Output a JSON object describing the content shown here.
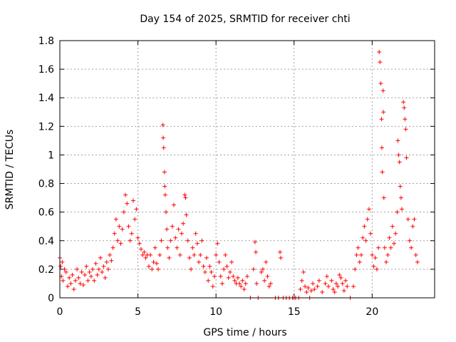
{
  "chart_data": {
    "type": "scatter",
    "title": "Day 154 of 2025, SRMTID for receiver chti",
    "xlabel": "GPS time / hours",
    "ylabel": "SRMTID / TECUs",
    "xlim": [
      0,
      24
    ],
    "ylim": [
      0,
      1.8
    ],
    "grid": true,
    "marker": "+",
    "color": "#ff0000",
    "x_ticks": [
      {
        "value": 0,
        "label": "0"
      },
      {
        "value": 5,
        "label": "5"
      },
      {
        "value": 10,
        "label": "10"
      },
      {
        "value": 15,
        "label": "15"
      },
      {
        "value": 20,
        "label": "20"
      }
    ],
    "y_ticks": [
      {
        "value": 0,
        "label": "0"
      },
      {
        "value": 0.2,
        "label": "0.2"
      },
      {
        "value": 0.4,
        "label": "0.4"
      },
      {
        "value": 0.6,
        "label": "0.6"
      },
      {
        "value": 0.8,
        "label": "0.8"
      },
      {
        "value": 1.0,
        "label": "1"
      },
      {
        "value": 1.2,
        "label": "1.2"
      },
      {
        "value": 1.4,
        "label": "1.4"
      },
      {
        "value": 1.6,
        "label": "1.6"
      },
      {
        "value": 1.8,
        "label": "1.8"
      }
    ],
    "series": [
      {
        "name": "SRMTID",
        "points": [
          [
            0.0,
            0.28
          ],
          [
            0.05,
            0.22
          ],
          [
            0.1,
            0.15
          ],
          [
            0.15,
            0.25
          ],
          [
            0.2,
            0.12
          ],
          [
            0.3,
            0.2
          ],
          [
            0.4,
            0.18
          ],
          [
            0.5,
            0.08
          ],
          [
            0.6,
            0.14
          ],
          [
            0.7,
            0.1
          ],
          [
            0.8,
            0.16
          ],
          [
            0.9,
            0.06
          ],
          [
            1.0,
            0.12
          ],
          [
            1.1,
            0.2
          ],
          [
            1.2,
            0.14
          ],
          [
            1.3,
            0.1
          ],
          [
            1.4,
            0.18
          ],
          [
            1.5,
            0.09
          ],
          [
            1.6,
            0.16
          ],
          [
            1.7,
            0.22
          ],
          [
            1.8,
            0.12
          ],
          [
            1.9,
            0.18
          ],
          [
            2.0,
            0.15
          ],
          [
            2.1,
            0.2
          ],
          [
            2.2,
            0.12
          ],
          [
            2.3,
            0.24
          ],
          [
            2.4,
            0.16
          ],
          [
            2.5,
            0.2
          ],
          [
            2.6,
            0.28
          ],
          [
            2.7,
            0.18
          ],
          [
            2.8,
            0.22
          ],
          [
            2.9,
            0.14
          ],
          [
            3.0,
            0.25
          ],
          [
            3.1,
            0.2
          ],
          [
            3.2,
            0.3
          ],
          [
            3.3,
            0.26
          ],
          [
            3.4,
            0.35
          ],
          [
            3.5,
            0.45
          ],
          [
            3.6,
            0.55
          ],
          [
            3.7,
            0.4
          ],
          [
            3.8,
            0.5
          ],
          [
            3.9,
            0.38
          ],
          [
            4.0,
            0.48
          ],
          [
            4.1,
            0.6
          ],
          [
            4.2,
            0.72
          ],
          [
            4.3,
            0.66
          ],
          [
            4.4,
            0.5
          ],
          [
            4.5,
            0.4
          ],
          [
            4.6,
            0.45
          ],
          [
            4.7,
            0.68
          ],
          [
            4.8,
            0.55
          ],
          [
            4.9,
            0.62
          ],
          [
            5.0,
            0.42
          ],
          [
            5.1,
            0.38
          ],
          [
            5.2,
            0.34
          ],
          [
            5.3,
            0.3
          ],
          [
            5.4,
            0.32
          ],
          [
            5.5,
            0.28
          ],
          [
            5.6,
            0.3
          ],
          [
            5.7,
            0.22
          ],
          [
            5.8,
            0.3
          ],
          [
            5.9,
            0.2
          ],
          [
            6.0,
            0.25
          ],
          [
            6.1,
            0.35
          ],
          [
            6.2,
            0.24
          ],
          [
            6.3,
            0.2
          ],
          [
            6.4,
            0.3
          ],
          [
            6.5,
            0.4
          ],
          [
            6.6,
            1.21
          ],
          [
            6.62,
            1.12
          ],
          [
            6.65,
            1.05
          ],
          [
            6.7,
            0.88
          ],
          [
            6.72,
            0.78
          ],
          [
            6.75,
            0.72
          ],
          [
            6.8,
            0.6
          ],
          [
            6.85,
            0.48
          ],
          [
            6.9,
            0.35
          ],
          [
            7.0,
            0.28
          ],
          [
            7.1,
            0.4
          ],
          [
            7.2,
            0.5
          ],
          [
            7.3,
            0.65
          ],
          [
            7.4,
            0.42
          ],
          [
            7.5,
            0.35
          ],
          [
            7.6,
            0.48
          ],
          [
            7.7,
            0.3
          ],
          [
            7.8,
            0.45
          ],
          [
            7.9,
            0.52
          ],
          [
            8.0,
            0.72
          ],
          [
            8.05,
            0.7
          ],
          [
            8.1,
            0.58
          ],
          [
            8.2,
            0.4
          ],
          [
            8.3,
            0.28
          ],
          [
            8.4,
            0.2
          ],
          [
            8.5,
            0.35
          ],
          [
            8.6,
            0.3
          ],
          [
            8.7,
            0.45
          ],
          [
            8.8,
            0.38
          ],
          [
            8.9,
            0.25
          ],
          [
            9.0,
            0.3
          ],
          [
            9.1,
            0.4
          ],
          [
            9.2,
            0.22
          ],
          [
            9.3,
            0.18
          ],
          [
            9.4,
            0.28
          ],
          [
            9.5,
            0.12
          ],
          [
            9.6,
            0.22
          ],
          [
            9.7,
            0.18
          ],
          [
            9.8,
            0.08
          ],
          [
            9.9,
            0.15
          ],
          [
            10.0,
            0.3
          ],
          [
            10.1,
            0.38
          ],
          [
            10.2,
            0.25
          ],
          [
            10.3,
            0.15
          ],
          [
            10.4,
            0.1
          ],
          [
            10.5,
            0.2
          ],
          [
            10.6,
            0.3
          ],
          [
            10.7,
            0.22
          ],
          [
            10.8,
            0.14
          ],
          [
            10.9,
            0.18
          ],
          [
            11.0,
            0.25
          ],
          [
            11.1,
            0.15
          ],
          [
            11.2,
            0.12
          ],
          [
            11.3,
            0.1
          ],
          [
            11.4,
            0.14
          ],
          [
            11.5,
            0.1
          ],
          [
            11.6,
            0.08
          ],
          [
            11.7,
            0.12
          ],
          [
            11.8,
            0.06
          ],
          [
            11.9,
            0.1
          ],
          [
            12.0,
            0.15
          ],
          [
            12.2,
            0.0
          ],
          [
            12.4,
            0.2
          ],
          [
            12.5,
            0.39
          ],
          [
            12.55,
            0.32
          ],
          [
            12.6,
            0.1
          ],
          [
            12.7,
            0.0
          ],
          [
            12.9,
            0.18
          ],
          [
            13.0,
            0.2
          ],
          [
            13.1,
            0.12
          ],
          [
            13.2,
            0.25
          ],
          [
            13.3,
            0.15
          ],
          [
            13.4,
            0.08
          ],
          [
            13.5,
            0.1
          ],
          [
            13.8,
            0.0
          ],
          [
            14.0,
            0.0
          ],
          [
            14.1,
            0.32
          ],
          [
            14.15,
            0.28
          ],
          [
            14.3,
            0.0
          ],
          [
            14.5,
            0.0
          ],
          [
            14.7,
            0.0
          ],
          [
            14.9,
            0.0
          ],
          [
            15.0,
            0.0
          ],
          [
            15.1,
            0.0
          ],
          [
            15.3,
            0.0
          ],
          [
            15.4,
            0.06
          ],
          [
            15.5,
            0.12
          ],
          [
            15.6,
            0.18
          ],
          [
            15.7,
            0.08
          ],
          [
            15.8,
            0.04
          ],
          [
            15.9,
            0.07
          ],
          [
            16.0,
            0.0
          ],
          [
            16.1,
            0.05
          ],
          [
            16.2,
            0.1
          ],
          [
            16.3,
            0.06
          ],
          [
            16.5,
            0.08
          ],
          [
            16.6,
            0.12
          ],
          [
            16.8,
            0.04
          ],
          [
            17.0,
            0.1
          ],
          [
            17.1,
            0.15
          ],
          [
            17.2,
            0.08
          ],
          [
            17.4,
            0.12
          ],
          [
            17.5,
            0.06
          ],
          [
            17.6,
            0.04
          ],
          [
            17.7,
            0.1
          ],
          [
            17.8,
            0.08
          ],
          [
            17.9,
            0.16
          ],
          [
            18.0,
            0.14
          ],
          [
            18.1,
            0.1
          ],
          [
            18.2,
            0.05
          ],
          [
            18.3,
            0.12
          ],
          [
            18.4,
            0.08
          ],
          [
            18.6,
            0.0
          ],
          [
            18.8,
            0.08
          ],
          [
            18.9,
            0.2
          ],
          [
            19.0,
            0.3
          ],
          [
            19.1,
            0.35
          ],
          [
            19.2,
            0.25
          ],
          [
            19.3,
            0.3
          ],
          [
            19.4,
            0.42
          ],
          [
            19.5,
            0.5
          ],
          [
            19.6,
            0.4
          ],
          [
            19.7,
            0.55
          ],
          [
            19.8,
            0.62
          ],
          [
            19.9,
            0.45
          ],
          [
            20.0,
            0.3
          ],
          [
            20.1,
            0.22
          ],
          [
            20.2,
            0.28
          ],
          [
            20.3,
            0.2
          ],
          [
            20.4,
            0.35
          ],
          [
            20.45,
            1.72
          ],
          [
            20.5,
            1.65
          ],
          [
            20.55,
            1.5
          ],
          [
            20.6,
            1.25
          ],
          [
            20.62,
            1.05
          ],
          [
            20.65,
            0.88
          ],
          [
            20.7,
            1.45
          ],
          [
            20.72,
            1.3
          ],
          [
            20.75,
            0.7
          ],
          [
            20.8,
            0.35
          ],
          [
            20.9,
            0.25
          ],
          [
            21.0,
            0.3
          ],
          [
            21.1,
            0.42
          ],
          [
            21.2,
            0.35
          ],
          [
            21.3,
            0.5
          ],
          [
            21.4,
            0.38
          ],
          [
            21.5,
            0.45
          ],
          [
            21.6,
            0.6
          ],
          [
            21.65,
            1.1
          ],
          [
            21.7,
            1.0
          ],
          [
            21.75,
            0.95
          ],
          [
            21.8,
            0.78
          ],
          [
            21.85,
            0.7
          ],
          [
            21.9,
            0.62
          ],
          [
            22.0,
            1.37
          ],
          [
            22.05,
            1.33
          ],
          [
            22.1,
            1.25
          ],
          [
            22.15,
            1.18
          ],
          [
            22.2,
            0.98
          ],
          [
            22.3,
            0.55
          ],
          [
            22.4,
            0.4
          ],
          [
            22.5,
            0.35
          ],
          [
            22.6,
            0.5
          ],
          [
            22.7,
            0.55
          ],
          [
            22.8,
            0.3
          ],
          [
            22.9,
            0.25
          ]
        ]
      }
    ]
  }
}
